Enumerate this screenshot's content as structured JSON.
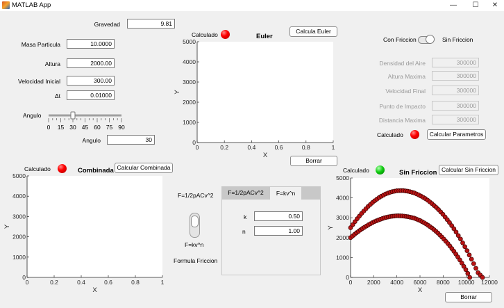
{
  "window": {
    "title": "MATLAB App",
    "minimize": "—",
    "maximize": "☐",
    "close": "✕"
  },
  "inputs": {
    "gravedad": {
      "label": "Gravedad",
      "value": "9.81"
    },
    "masa": {
      "label": "Masa Particula",
      "value": "10.0000"
    },
    "altura": {
      "label": "Altura",
      "value": "2000.00"
    },
    "velocidad": {
      "label": "Velocidad Inicial",
      "value": "300.00"
    },
    "dt": {
      "label": "Δt",
      "value": "0.01000"
    },
    "angulo_slider": {
      "label": "Angulo",
      "value": 30,
      "min": 0,
      "max": 90,
      "ticks": [
        "0",
        "15",
        "30",
        "45",
        "60",
        "75",
        "90"
      ]
    },
    "angulo": {
      "label": "Angulo",
      "value": "30"
    }
  },
  "euler": {
    "status_label": "Calculado",
    "status_color": "#ff0000",
    "title": "Euler",
    "calc_button": "Calcula Euler",
    "clear_button": "Borrar",
    "xlabel": "X",
    "ylabel": "Y",
    "xticks": [
      "0",
      "0.2",
      "0.4",
      "0.6",
      "0.8",
      "1"
    ],
    "yticks": [
      "0",
      "1000",
      "2000",
      "3000",
      "4000",
      "5000"
    ]
  },
  "friction": {
    "switch_left": "Con Friccion",
    "switch_right": "Sin Friccion",
    "params": [
      {
        "label": "Densidad del Aire",
        "value": "300000"
      },
      {
        "label": "Altura Maxima",
        "value": "300000"
      },
      {
        "label": "Velocidad Final",
        "value": "300000"
      },
      {
        "label": "Punto de Impacto",
        "value": "300000"
      },
      {
        "label": "Distancia Maxima",
        "value": "300000"
      }
    ],
    "status_label": "Calculado",
    "status_color": "#ff0000",
    "calc_button": "Calcular Parametros"
  },
  "combinada": {
    "status_label": "Calculado",
    "status_color": "#ff0000",
    "title": "Combinada",
    "calc_button": "Calcular Combinada",
    "xlabel": "X",
    "ylabel": "Y",
    "xticks": [
      "0",
      "0.2",
      "0.4",
      "0.6",
      "0.8",
      "1"
    ],
    "yticks": [
      "0",
      "1000",
      "2000",
      "3000",
      "4000",
      "5000"
    ]
  },
  "formula": {
    "rocker_top_label": "F=1/2pACv^2",
    "rocker_bottom_label": "F=kv^n",
    "caption": "Formula Friccion",
    "tabs": [
      "F=1/2pACv^2",
      "F=kv^n"
    ],
    "active_tab": 0,
    "k": {
      "label": "k",
      "value": "0.50"
    },
    "n": {
      "label": "n",
      "value": "1.00"
    }
  },
  "sin_friccion": {
    "status_label": "Calculado",
    "status_color": "#00c000",
    "title": "Sin Friccion",
    "calc_button": "Calcular Sin Friccion",
    "clear_button": "Borrar",
    "xlabel": "X",
    "ylabel": "Y",
    "xticks": [
      "0",
      "2000",
      "4000",
      "6000",
      "8000",
      "10000",
      "12000"
    ],
    "yticks": [
      "0",
      "1000",
      "2000",
      "3000",
      "4000",
      "5000"
    ]
  },
  "chart_data": [
    {
      "type": "line",
      "title": "Euler",
      "xlabel": "X",
      "ylabel": "Y",
      "xlim": [
        0,
        1
      ],
      "ylim": [
        0,
        5000
      ],
      "series": []
    },
    {
      "type": "line",
      "title": "Combinada",
      "xlabel": "X",
      "ylabel": "Y",
      "xlim": [
        0,
        1
      ],
      "ylim": [
        0,
        5000
      ],
      "series": []
    },
    {
      "type": "scatter",
      "title": "Sin Friccion",
      "xlabel": "X",
      "ylabel": "Y",
      "xlim": [
        0,
        12000
      ],
      "ylim": [
        0,
        5000
      ],
      "marker_color": "#b81414",
      "series": [
        {
          "x": [
            0,
            500,
            1000,
            1500,
            2000,
            2500,
            3000,
            3500,
            4000,
            4500,
            5000,
            5500,
            6000,
            6500,
            7000,
            7500,
            8000,
            8500,
            9000,
            9500,
            10000,
            10300
          ],
          "y": [
            2000,
            2240,
            2450,
            2630,
            2790,
            2910,
            3010,
            3070,
            3100,
            3090,
            3050,
            2980,
            2860,
            2700,
            2500,
            2260,
            1970,
            1640,
            1260,
            830,
            350,
            0
          ]
        },
        {
          "x": [
            0,
            500,
            1000,
            1500,
            2000,
            2500,
            3000,
            3500,
            4000,
            4500,
            5000,
            5500,
            6000,
            6500,
            7000,
            7500,
            8000,
            8500,
            9000,
            9500,
            10000,
            10500,
            11000,
            11400
          ],
          "y": [
            2500,
            2900,
            3250,
            3560,
            3820,
            4030,
            4190,
            4300,
            4360,
            4370,
            4330,
            4250,
            4120,
            3950,
            3730,
            3470,
            3160,
            2800,
            2390,
            1930,
            1420,
            860,
            250,
            0
          ]
        }
      ]
    }
  ]
}
